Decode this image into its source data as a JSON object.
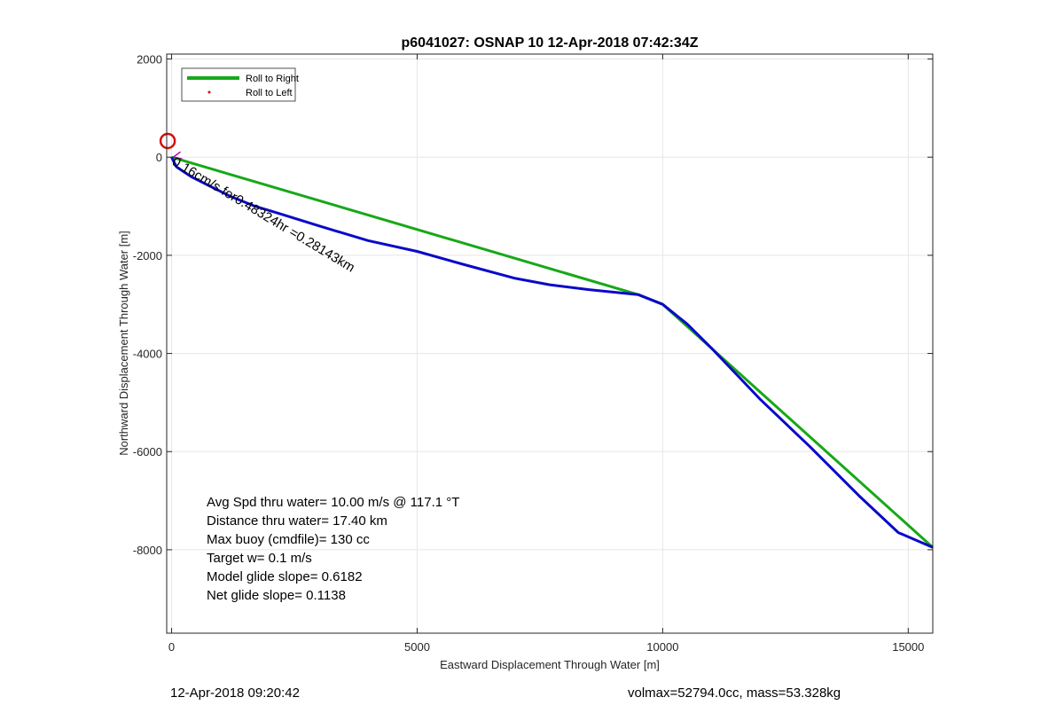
{
  "chart_data": {
    "type": "line",
    "title": "p6041027: OSNAP 10 12-Apr-2018 07:42:34Z",
    "xlabel": "Eastward Displacement Through Water [m]",
    "ylabel": "Northward Displacement Through Water [m]",
    "xlim": [
      -100,
      15500
    ],
    "ylim": [
      -9700,
      2100
    ],
    "xticks": [
      0,
      5000,
      10000,
      15000
    ],
    "yticks": [
      2000,
      0,
      -2000,
      -4000,
      -6000,
      -8000
    ],
    "grid": true,
    "legend_location": "top-left",
    "series": [
      {
        "name": "Roll to Right",
        "color": "#18a818",
        "style": "line",
        "x": [
          0,
          9500,
          10000,
          15500
        ],
        "y": [
          0,
          -2800,
          -3000,
          -7950
        ]
      },
      {
        "name": "Roll to Left",
        "color": "#e00000",
        "style": "dots",
        "x": [],
        "y": []
      },
      {
        "name": "",
        "color": "#0a0ac8",
        "style": "line",
        "x": [
          0,
          100,
          400,
          800,
          1200,
          1700,
          2200,
          3000,
          4000,
          5000,
          6000,
          7000,
          7700,
          8500,
          9500,
          10000,
          10500,
          11000,
          12000,
          13000,
          14000,
          14800,
          15500
        ],
        "y": [
          0,
          -200,
          -400,
          -600,
          -800,
          -1000,
          -1150,
          -1400,
          -1700,
          -1920,
          -2200,
          -2470,
          -2600,
          -2700,
          -2800,
          -3000,
          -3400,
          -3900,
          -4950,
          -5900,
          -6900,
          -7650,
          -7950
        ]
      }
    ],
    "markers": [
      {
        "name": "start-circle",
        "x": -80,
        "y": 330,
        "color": "#d01010"
      }
    ],
    "annotations": {
      "rotated_text": "0.16cm/s for0.48324hr =0.28143km",
      "stats": [
        "Avg Spd thru water= 10.00 m/s @ 117.1 °T",
        "Distance thru water= 17.40 km",
        "Max buoy (cmdfile)= 130 cc",
        "Target w= 0.1 m/s",
        "Model glide slope= 0.6182",
        "Net glide slope= 0.1138"
      ]
    }
  },
  "footer": {
    "left": "12-Apr-2018 09:20:42",
    "right": "volmax=52794.0cc, mass=53.328kg"
  }
}
